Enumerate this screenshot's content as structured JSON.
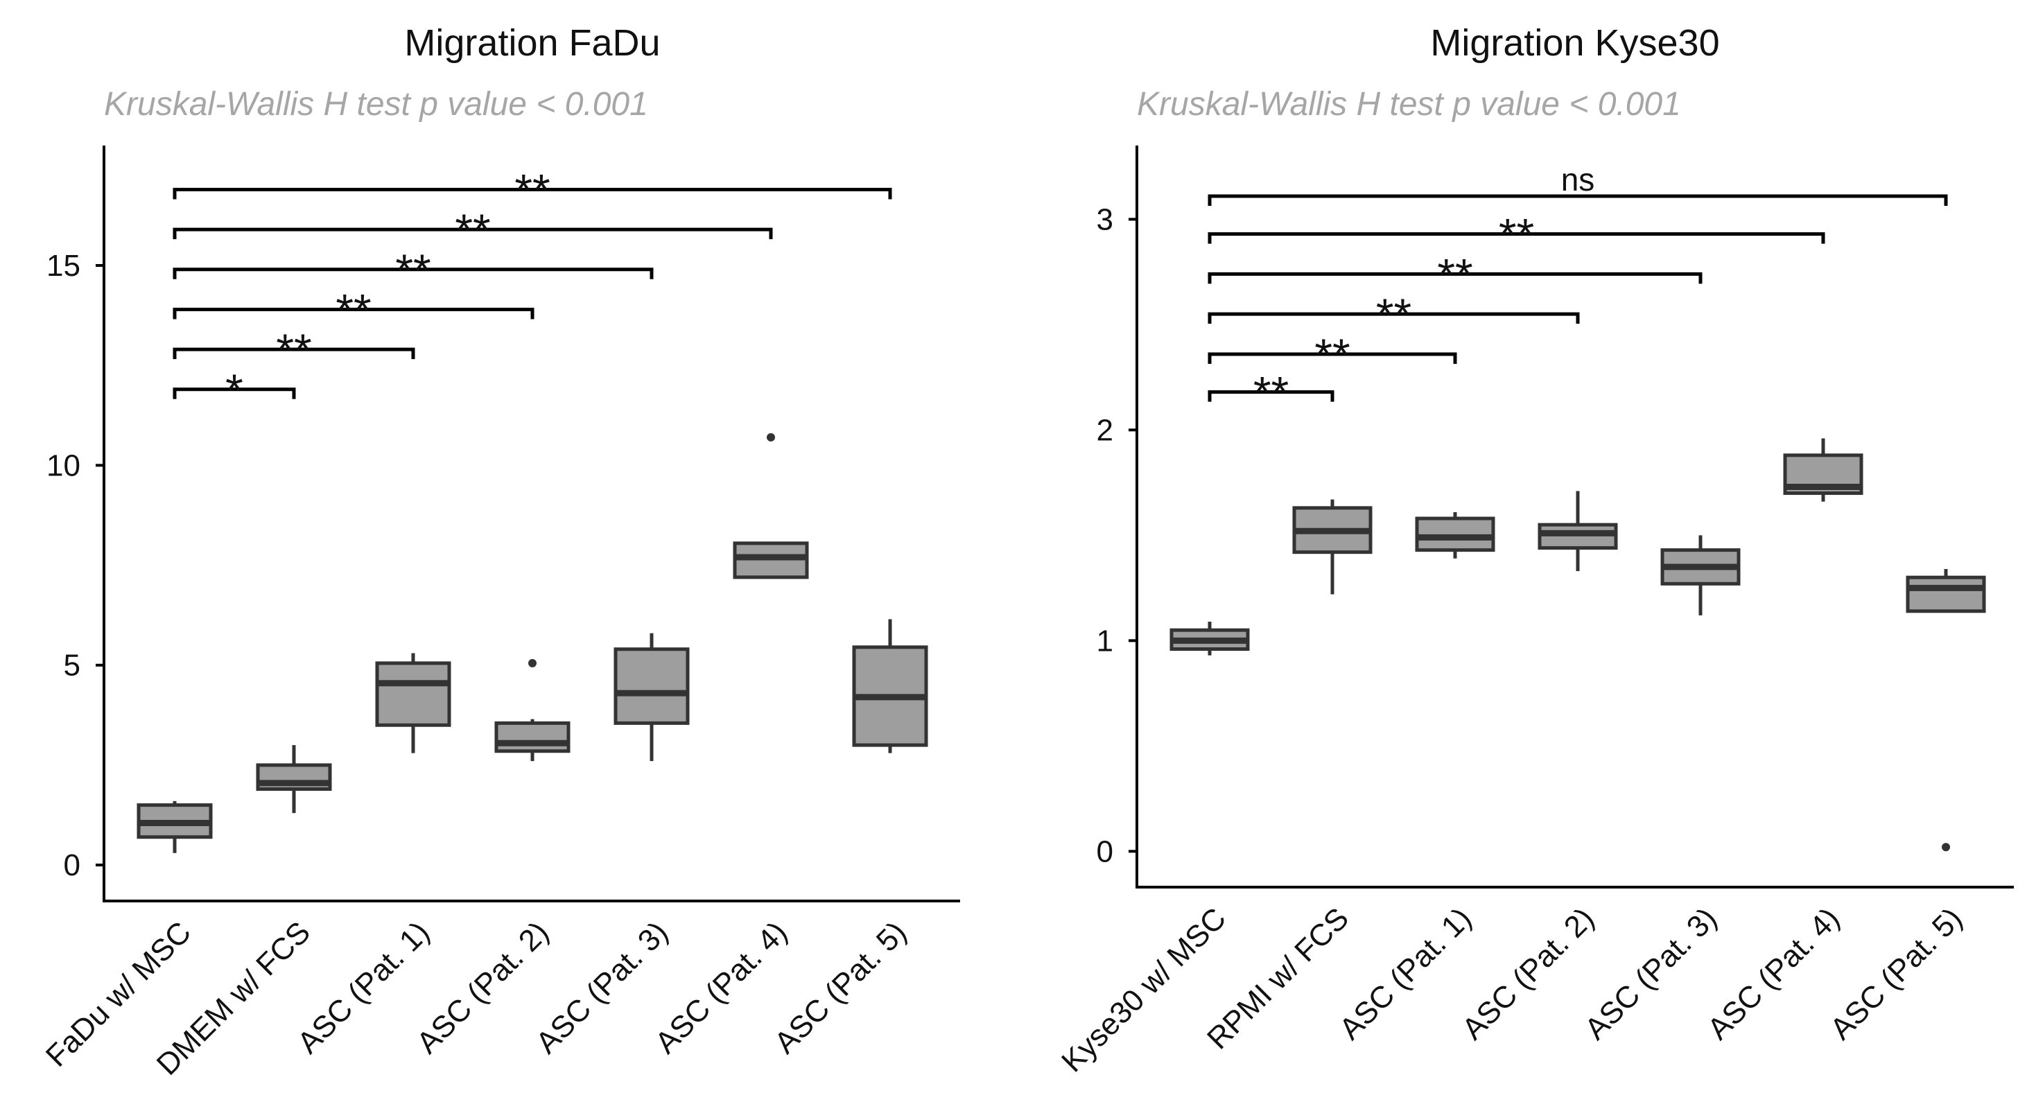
{
  "chart_data": [
    {
      "type": "box",
      "title": "Migration FaDu",
      "subtitle": "Kruskal-Wallis H test p value < 0.001",
      "xlabel": "",
      "ylabel": "",
      "ylim": [
        -0.9,
        18
      ],
      "yticks": [
        0,
        5,
        10,
        15
      ],
      "categories": [
        "FaDu w/ MSC",
        "DMEM w/ FCS",
        "ASC (Pat. 1)",
        "ASC (Pat. 2)",
        "ASC (Pat. 3)",
        "ASC (Pat. 4)",
        "ASC (Pat. 5)"
      ],
      "boxes": [
        {
          "whisker_low": 0.3,
          "q1": 0.7,
          "median": 1.05,
          "q3": 1.5,
          "whisker_high": 1.6,
          "outliers": []
        },
        {
          "whisker_low": 1.3,
          "q1": 1.9,
          "median": 2.05,
          "q3": 2.5,
          "whisker_high": 3.0,
          "outliers": []
        },
        {
          "whisker_low": 2.8,
          "q1": 3.5,
          "median": 4.55,
          "q3": 5.05,
          "whisker_high": 5.3,
          "outliers": []
        },
        {
          "whisker_low": 2.6,
          "q1": 2.85,
          "median": 3.05,
          "q3": 3.55,
          "whisker_high": 3.65,
          "outliers": [
            5.05
          ]
        },
        {
          "whisker_low": 2.6,
          "q1": 3.55,
          "median": 4.3,
          "q3": 5.4,
          "whisker_high": 5.8,
          "outliers": []
        },
        {
          "whisker_low": 7.2,
          "q1": 7.2,
          "median": 7.7,
          "q3": 8.05,
          "whisker_high": 8.05,
          "outliers": [
            10.7
          ]
        },
        {
          "whisker_low": 2.8,
          "q1": 3.0,
          "median": 4.2,
          "q3": 5.45,
          "whisker_high": 6.15,
          "outliers": []
        }
      ],
      "comparisons": [
        {
          "from": 0,
          "to": 1,
          "label": "*",
          "y": 11.9
        },
        {
          "from": 0,
          "to": 2,
          "label": "**",
          "y": 12.9
        },
        {
          "from": 0,
          "to": 3,
          "label": "**",
          "y": 13.9
        },
        {
          "from": 0,
          "to": 4,
          "label": "**",
          "y": 14.9
        },
        {
          "from": 0,
          "to": 5,
          "label": "**",
          "y": 15.9
        },
        {
          "from": 0,
          "to": 6,
          "label": "**",
          "y": 16.9
        }
      ]
    },
    {
      "type": "box",
      "title": "Migration Kyse30",
      "subtitle": "Kruskal-Wallis H test p value < 0.001",
      "xlabel": "",
      "ylabel": "",
      "ylim": [
        -0.17,
        3.35
      ],
      "yticks": [
        0,
        1,
        2,
        3
      ],
      "categories": [
        "Kyse30 w/ MSC",
        "RPMI w/ FCS",
        "ASC (Pat. 1)",
        "ASC (Pat. 2)",
        "ASC (Pat. 3)",
        "ASC (Pat. 4)",
        "ASC (Pat. 5)"
      ],
      "boxes": [
        {
          "whisker_low": 0.93,
          "q1": 0.96,
          "median": 1.0,
          "q3": 1.05,
          "whisker_high": 1.09,
          "outliers": []
        },
        {
          "whisker_low": 1.22,
          "q1": 1.42,
          "median": 1.52,
          "q3": 1.63,
          "whisker_high": 1.67,
          "outliers": []
        },
        {
          "whisker_low": 1.39,
          "q1": 1.43,
          "median": 1.49,
          "q3": 1.58,
          "whisker_high": 1.61,
          "outliers": []
        },
        {
          "whisker_low": 1.33,
          "q1": 1.44,
          "median": 1.51,
          "q3": 1.55,
          "whisker_high": 1.71,
          "outliers": []
        },
        {
          "whisker_low": 1.12,
          "q1": 1.27,
          "median": 1.35,
          "q3": 1.43,
          "whisker_high": 1.5,
          "outliers": []
        },
        {
          "whisker_low": 1.66,
          "q1": 1.7,
          "median": 1.73,
          "q3": 1.88,
          "whisker_high": 1.96,
          "outliers": []
        },
        {
          "whisker_low": 1.14,
          "q1": 1.14,
          "median": 1.25,
          "q3": 1.3,
          "whisker_high": 1.34,
          "outliers": [
            0.02
          ]
        }
      ],
      "comparisons": [
        {
          "from": 0,
          "to": 1,
          "label": "**",
          "y": 2.18
        },
        {
          "from": 0,
          "to": 2,
          "label": "**",
          "y": 2.36
        },
        {
          "from": 0,
          "to": 3,
          "label": "**",
          "y": 2.55
        },
        {
          "from": 0,
          "to": 4,
          "label": "**",
          "y": 2.74
        },
        {
          "from": 0,
          "to": 5,
          "label": "**",
          "y": 2.93
        },
        {
          "from": 0,
          "to": 6,
          "label": "ns",
          "y": 3.11
        }
      ]
    }
  ]
}
